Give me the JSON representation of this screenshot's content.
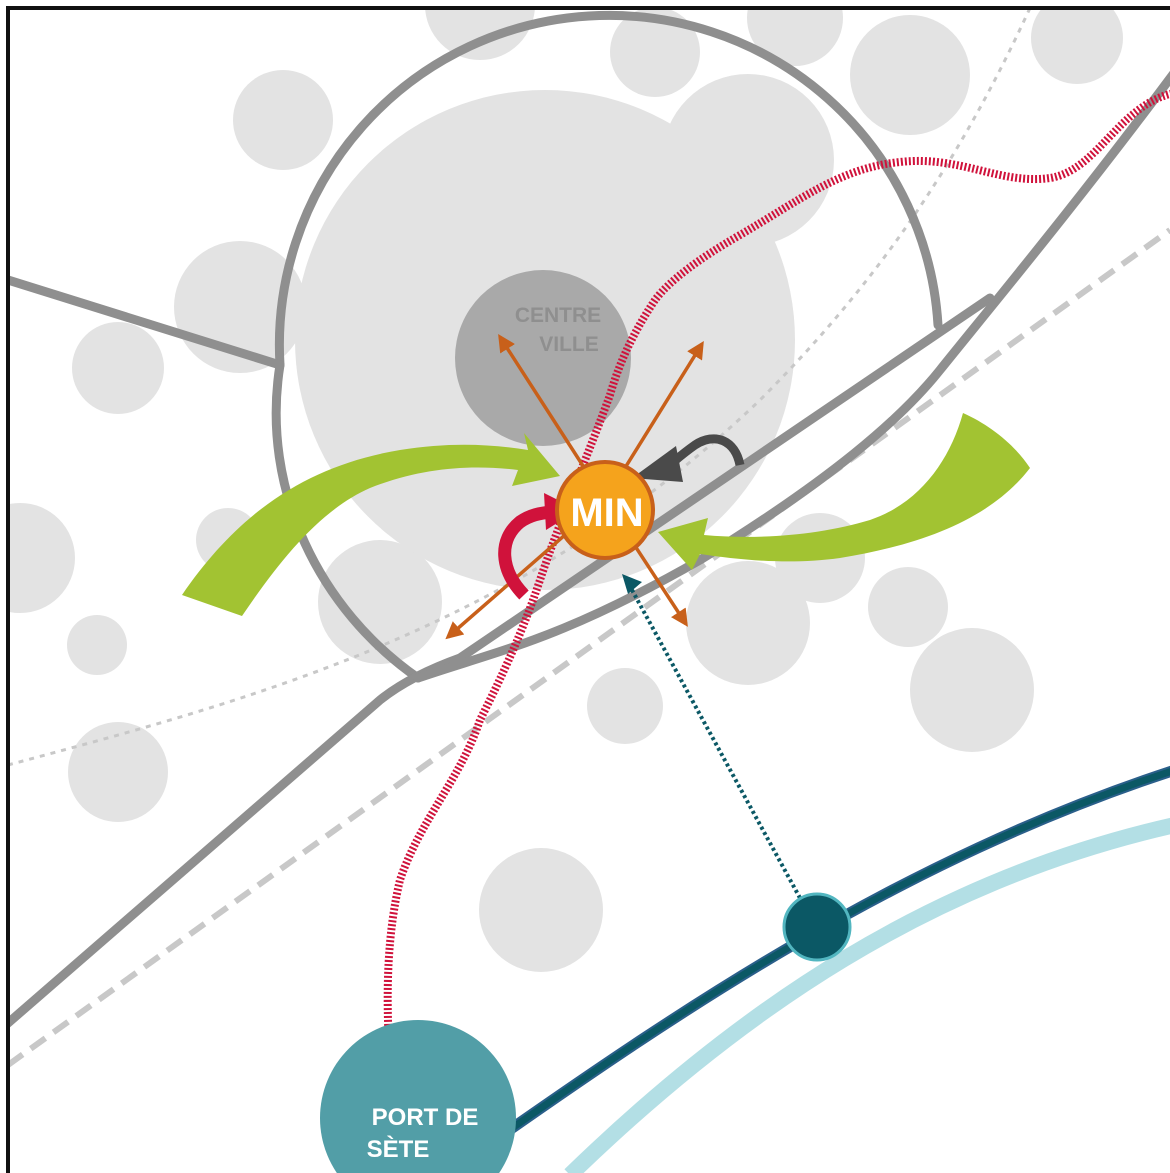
{
  "labels": {
    "centre_line1": "CENTRE",
    "centre_line2": "VILLE",
    "hub": "MIN",
    "port_line1": "PORT DE",
    "port_line2": "SÈTE"
  },
  "colors": {
    "background": "#ffffff",
    "bubble": "#e3e3e3",
    "centre_circle": "#a9a9a9",
    "road": "#8f8f8f",
    "rail_dashed": "#c8c8c8",
    "red_route": "#d0123b",
    "green_flow": "#a2c332",
    "hub_fill": "#f5a31c",
    "hub_stroke": "#c8601a",
    "orange_arrow": "#c8601a",
    "dark_arrow": "#4a4a4a",
    "teal_dark": "#0b5865",
    "teal_light": "#b3dfe5",
    "port_fill": "#529ea7",
    "frame": "#111111"
  }
}
